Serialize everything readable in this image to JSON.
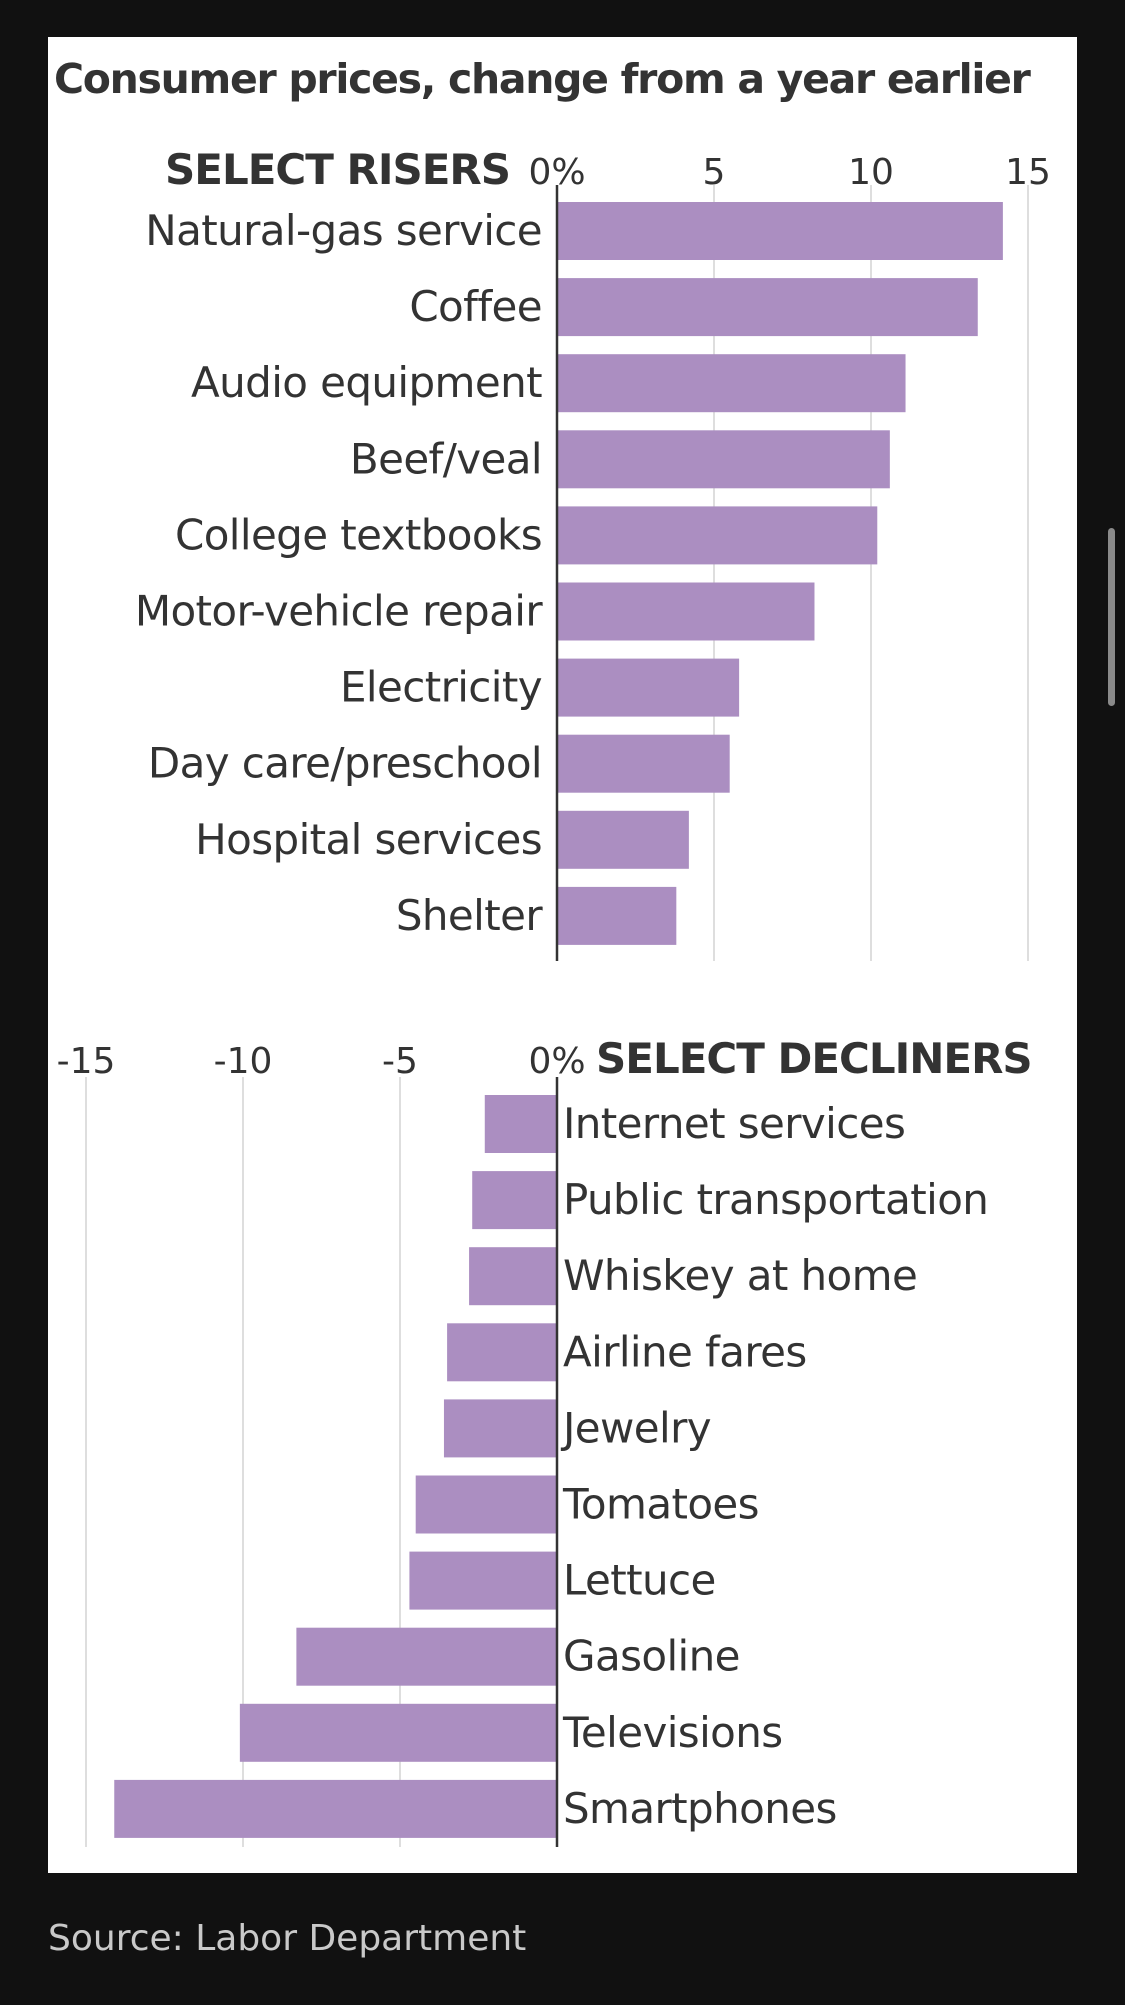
{
  "title": "Consumer prices, change from a year earlier",
  "source": "Source: Labor Department",
  "colors": {
    "bar": "#ab8ec1",
    "text": "#333333",
    "grid": "#d4d4d4",
    "axis": "#333333",
    "page_background": "#111111",
    "card_background": "#ffffff",
    "source_text": "#c9c9c9"
  },
  "chart_data": [
    {
      "type": "bar",
      "orientation": "horizontal",
      "heading": "SELECT RISERS",
      "categories": [
        "Natural-gas service",
        "Coffee",
        "Audio equipment",
        "Beef/veal",
        "College textbooks",
        "Motor-vehicle repair",
        "Electricity",
        "Day care/preschool",
        "Hospital services",
        "Shelter"
      ],
      "values": [
        14.2,
        13.4,
        11.1,
        10.6,
        10.2,
        8.2,
        5.8,
        5.5,
        4.2,
        3.8
      ],
      "xlim": [
        0,
        15
      ],
      "ticks": [
        0,
        5,
        10,
        15
      ],
      "tick_labels": [
        "0%",
        "5",
        "10",
        "15"
      ],
      "grid": true
    },
    {
      "type": "bar",
      "orientation": "horizontal",
      "heading": "SELECT DECLINERS",
      "categories": [
        "Internet services",
        "Public transportation",
        "Whiskey at home",
        "Airline fares",
        "Jewelry",
        "Tomatoes",
        "Lettuce",
        "Gasoline",
        "Televisions",
        "Smartphones"
      ],
      "values": [
        -2.3,
        -2.7,
        -2.8,
        -3.5,
        -3.6,
        -4.5,
        -4.7,
        -8.3,
        -10.1,
        -14.1
      ],
      "xlim": [
        -15,
        0
      ],
      "ticks": [
        -15,
        -10,
        -5,
        0
      ],
      "tick_labels": [
        "-15",
        "-10",
        "-5",
        "0%"
      ],
      "grid": true
    }
  ]
}
